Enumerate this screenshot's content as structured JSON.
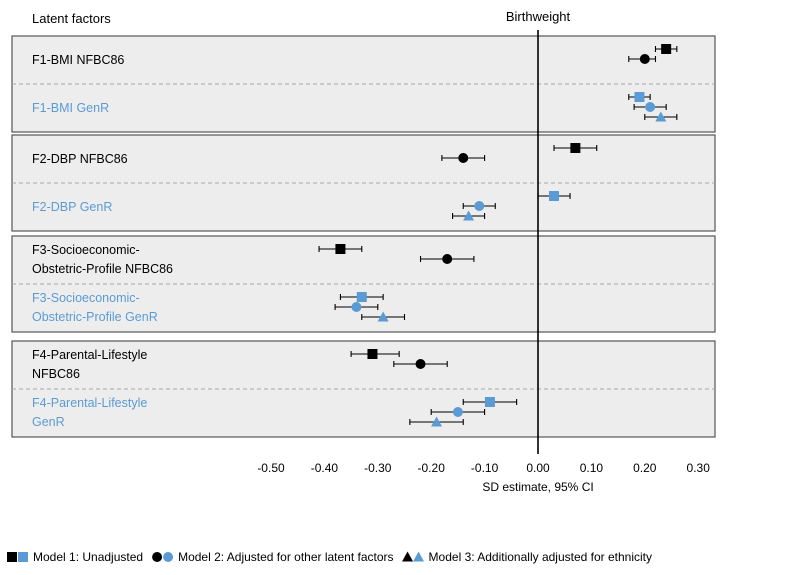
{
  "chart_data": {
    "type": "scatter",
    "subtype": "forest-plot",
    "row_header": "Latent factors",
    "title": "Birthweight",
    "xlabel": "SD estimate, 95% CI",
    "xlim": [
      -0.5,
      0.3
    ],
    "x_ticks": [
      "-0.50",
      "-0.40",
      "-0.30",
      "-0.20",
      "-0.10",
      "0.00",
      "0.10",
      "0.20",
      "0.30"
    ],
    "x_tick_values": [
      -0.5,
      -0.4,
      -0.3,
      -0.2,
      -0.1,
      0.0,
      0.1,
      0.2,
      0.3
    ],
    "reference_line": 0.0,
    "colors": {
      "NFBC86": "#000000",
      "GenR": "#5b9bd5",
      "panel_bg": "#ededed",
      "panel_border": "#555555",
      "divider": "#a6a6a6"
    },
    "markers": {
      "Model 1": "square",
      "Model 2": "circle",
      "Model 3": "triangle"
    },
    "groups": [
      {
        "factor": "F1",
        "subgroups": [
          {
            "cohort": "NFBC86",
            "label_lines": [
              "F1-BMI NFBC86"
            ],
            "estimates": [
              {
                "model": "Model 1",
                "est": 0.24,
                "lo": 0.22,
                "hi": 0.26
              },
              {
                "model": "Model 2",
                "est": 0.2,
                "lo": 0.17,
                "hi": 0.22
              }
            ]
          },
          {
            "cohort": "GenR",
            "label_lines": [
              "F1-BMI GenR"
            ],
            "estimates": [
              {
                "model": "Model 1",
                "est": 0.19,
                "lo": 0.17,
                "hi": 0.21
              },
              {
                "model": "Model 2",
                "est": 0.21,
                "lo": 0.18,
                "hi": 0.24
              },
              {
                "model": "Model 3",
                "est": 0.23,
                "lo": 0.2,
                "hi": 0.26
              }
            ]
          }
        ]
      },
      {
        "factor": "F2",
        "subgroups": [
          {
            "cohort": "NFBC86",
            "label_lines": [
              "F2-DBP NFBC86"
            ],
            "estimates": [
              {
                "model": "Model 1",
                "est": 0.07,
                "lo": 0.03,
                "hi": 0.11
              },
              {
                "model": "Model 2",
                "est": -0.14,
                "lo": -0.18,
                "hi": -0.1
              }
            ]
          },
          {
            "cohort": "GenR",
            "label_lines": [
              "F2-DBP GenR"
            ],
            "estimates": [
              {
                "model": "Model 1",
                "est": 0.03,
                "lo": 0.0,
                "hi": 0.06
              },
              {
                "model": "Model 2",
                "est": -0.11,
                "lo": -0.14,
                "hi": -0.08
              },
              {
                "model": "Model 3",
                "est": -0.13,
                "lo": -0.16,
                "hi": -0.1
              }
            ]
          }
        ]
      },
      {
        "factor": "F3",
        "subgroups": [
          {
            "cohort": "NFBC86",
            "label_lines": [
              "F3-Socioeconomic-",
              "Obstetric-Profile NFBC86"
            ],
            "estimates": [
              {
                "model": "Model 1",
                "est": -0.37,
                "lo": -0.41,
                "hi": -0.33
              },
              {
                "model": "Model 2",
                "est": -0.17,
                "lo": -0.22,
                "hi": -0.12
              }
            ]
          },
          {
            "cohort": "GenR",
            "label_lines": [
              "F3-Socioeconomic-",
              "Obstetric-Profile GenR"
            ],
            "estimates": [
              {
                "model": "Model 1",
                "est": -0.33,
                "lo": -0.37,
                "hi": -0.29
              },
              {
                "model": "Model 2",
                "est": -0.34,
                "lo": -0.38,
                "hi": -0.3
              },
              {
                "model": "Model 3",
                "est": -0.29,
                "lo": -0.33,
                "hi": -0.25
              }
            ]
          }
        ]
      },
      {
        "factor": "F4",
        "subgroups": [
          {
            "cohort": "NFBC86",
            "label_lines": [
              "F4-Parental-Lifestyle",
              "NFBC86"
            ],
            "estimates": [
              {
                "model": "Model 1",
                "est": -0.31,
                "lo": -0.35,
                "hi": -0.26
              },
              {
                "model": "Model 2",
                "est": -0.22,
                "lo": -0.27,
                "hi": -0.17
              }
            ]
          },
          {
            "cohort": "GenR",
            "label_lines": [
              "F4-Parental-Lifestyle",
              "GenR"
            ],
            "estimates": [
              {
                "model": "Model 1",
                "est": -0.09,
                "lo": -0.14,
                "hi": -0.04
              },
              {
                "model": "Model 2",
                "est": -0.15,
                "lo": -0.2,
                "hi": -0.1
              },
              {
                "model": "Model 3",
                "est": -0.19,
                "lo": -0.24,
                "hi": -0.14
              }
            ]
          }
        ]
      }
    ],
    "legend": [
      {
        "marker": "square",
        "label": "Model 1: Unadjusted"
      },
      {
        "marker": "circle",
        "label": "Model 2: Adjusted for other latent factors"
      },
      {
        "marker": "triangle",
        "label": "Model 3: Additionally adjusted for ethnicity"
      }
    ],
    "legend_position": "bottom"
  }
}
